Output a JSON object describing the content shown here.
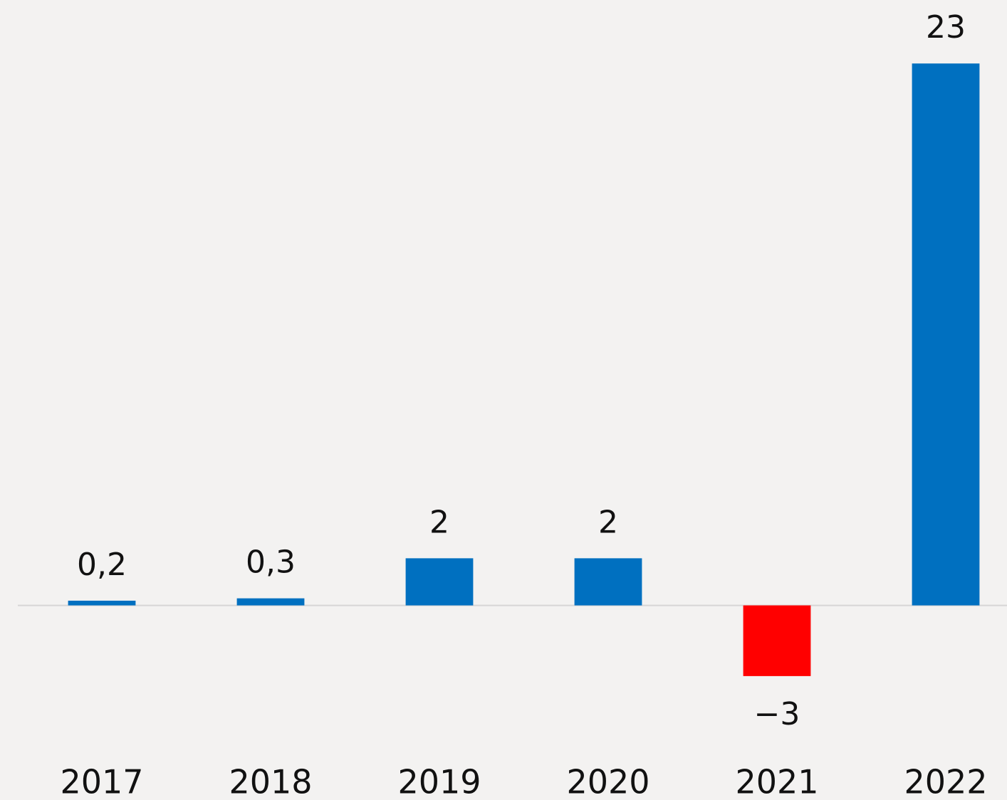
{
  "chart_data": {
    "type": "bar",
    "categories": [
      "2017",
      "2018",
      "2019",
      "2020",
      "2021",
      "2022"
    ],
    "values": [
      0.2,
      0.3,
      2,
      2,
      -3,
      23
    ],
    "value_labels": [
      "0,2",
      "0,3",
      "2",
      "2",
      "−3",
      "23"
    ],
    "colors": [
      "#0070c0",
      "#0070c0",
      "#0070c0",
      "#0070c0",
      "#ff0000",
      "#0070c0"
    ],
    "ylim": [
      -4,
      25
    ]
  }
}
